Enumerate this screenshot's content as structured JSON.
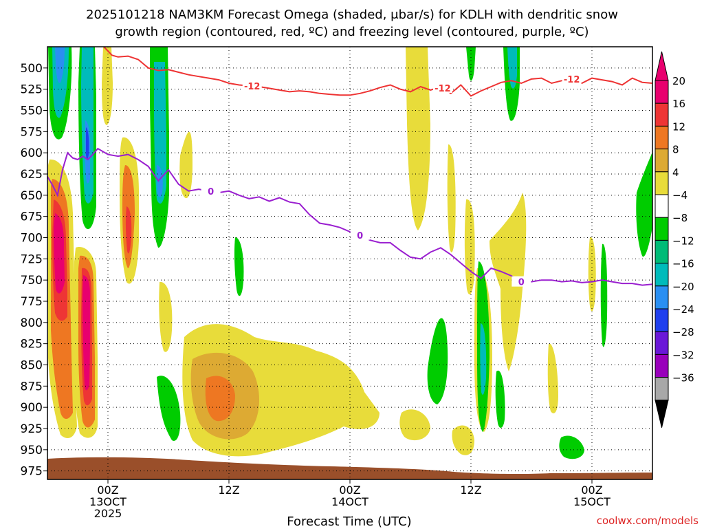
{
  "chart_data": {
    "type": "heatmap",
    "title_line1": "2025101218 NAM3KM Forecast Omega (shaded, μbar/s) for KDLH with dendritic snow",
    "title_line2": "growth region (contoured, red, ºC) and freezing level (contoured, purple, ºC)",
    "xlabel": "Forecast Time (UTC)",
    "credit": "coolwx.com/models",
    "x_range_hours": [
      -6,
      54
    ],
    "x_ticks": [
      {
        "hour": 0,
        "lines": [
          "00Z",
          "13OCT",
          "2025"
        ]
      },
      {
        "hour": 12,
        "lines": [
          "12Z"
        ]
      },
      {
        "hour": 24,
        "lines": [
          "00Z",
          "14OCT"
        ]
      },
      {
        "hour": 36,
        "lines": [
          "12Z"
        ]
      },
      {
        "hour": 48,
        "lines": [
          "00Z",
          "15OCT"
        ]
      }
    ],
    "y_range_mb": [
      475,
      985
    ],
    "y_ticks": [
      500,
      525,
      550,
      575,
      600,
      625,
      650,
      675,
      700,
      725,
      750,
      775,
      800,
      825,
      850,
      875,
      900,
      925,
      950,
      975
    ],
    "grid": "dotted",
    "colorbar": {
      "labels": [
        "20",
        "16",
        "12",
        "8",
        "4",
        "−4",
        "−8",
        "−12",
        "−16",
        "−20",
        "−24",
        "−28",
        "−32",
        "−36"
      ],
      "colors": [
        "#e8006e",
        "#ee3535",
        "#ee7722",
        "#ddaa33",
        "#e8dc3a",
        "#ffffff",
        "#00cc00",
        "#00bb77",
        "#00bbbb",
        "#2a8ff2",
        "#1f3fee",
        "#6a18d8",
        "#9900bb",
        "#a8a8a8"
      ],
      "top_color": "#e8006e",
      "bottom_color": "#000000"
    },
    "series": [
      {
        "name": "-12",
        "color": "#ee3333",
        "x": [
          -0.4,
          0.4,
          1,
          2,
          3,
          4,
          5,
          6,
          7,
          8,
          9,
          10,
          11,
          12,
          13,
          14,
          15,
          16,
          17,
          18,
          19,
          20,
          21,
          22,
          23,
          24,
          25,
          26,
          27,
          28,
          29,
          30,
          31,
          32,
          33,
          34,
          35,
          36,
          37,
          38,
          39,
          40,
          41,
          42,
          43,
          44,
          45,
          46,
          47,
          48,
          49,
          50,
          51,
          52,
          53,
          54
        ],
        "y": [
          475,
          485,
          487,
          486,
          490,
          500,
          503,
          502,
          505,
          508,
          510,
          512,
          514,
          518,
          520,
          521,
          522,
          524,
          526,
          528,
          527,
          528,
          530,
          531,
          532,
          532,
          530,
          527,
          523,
          520,
          525,
          528,
          522,
          526,
          522,
          530,
          520,
          533,
          527,
          522,
          517,
          515,
          518,
          513,
          512,
          518,
          515,
          513,
          518,
          512,
          514,
          516,
          520,
          512,
          517,
          518
        ],
        "labels": [
          {
            "x": 14.3,
            "text": "-12"
          },
          {
            "x": 33.2,
            "text": "-12"
          },
          {
            "x": 46.0,
            "text": "-12"
          }
        ]
      },
      {
        "name": "0",
        "color": "#9a1fd0",
        "x": [
          -6,
          -5.5,
          -5,
          -4.5,
          -4,
          -3.5,
          -3,
          -2.5,
          -2,
          -1.5,
          -1,
          0,
          1,
          2,
          3,
          4,
          5,
          6,
          7,
          8,
          9,
          10,
          11,
          12,
          13,
          14,
          15,
          16,
          17,
          18,
          19,
          20,
          21,
          22,
          23,
          24,
          25,
          26,
          27,
          28,
          29,
          30,
          31,
          32,
          33,
          34,
          35,
          36,
          37,
          38,
          39,
          40,
          41,
          42,
          43,
          44,
          45,
          46,
          47,
          48,
          49,
          50,
          51,
          52,
          53,
          54
        ],
        "y": [
          628,
          638,
          650,
          620,
          600,
          606,
          608,
          604,
          608,
          602,
          595,
          602,
          604,
          602,
          608,
          616,
          633,
          620,
          637,
          645,
          643,
          645,
          647,
          645,
          650,
          654,
          652,
          657,
          653,
          658,
          660,
          673,
          683,
          685,
          688,
          693,
          697,
          703,
          706,
          706,
          715,
          723,
          725,
          717,
          712,
          720,
          730,
          740,
          748,
          736,
          740,
          745,
          752,
          752,
          750,
          750,
          752,
          751,
          753,
          752,
          750,
          752,
          754,
          754,
          756,
          755
        ],
        "labels": [
          {
            "x": 10.2,
            "text": "0"
          },
          {
            "x": 25.0,
            "text": "0"
          },
          {
            "x": 41.0,
            "text": "0"
          }
        ]
      }
    ]
  }
}
